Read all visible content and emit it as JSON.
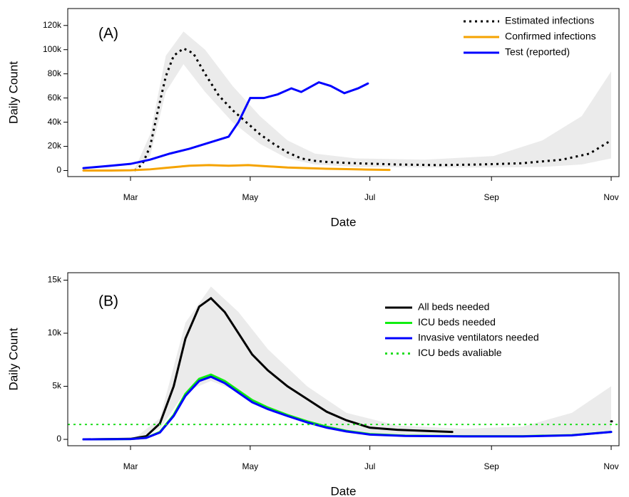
{
  "chart_data": [
    {
      "type": "line",
      "annotation": "(A)",
      "x_label": "Date",
      "y_label": "Daily Count",
      "xlim": [
        28,
        309
      ],
      "ylim": [
        -5000,
        134000
      ],
      "xticks": [
        {
          "value": 60,
          "label": "Mar"
        },
        {
          "value": 121,
          "label": "May"
        },
        {
          "value": 182,
          "label": "Jul"
        },
        {
          "value": 244,
          "label": "Sep"
        },
        {
          "value": 305,
          "label": "Nov"
        }
      ],
      "yticks": [
        0,
        {
          "value": 20000,
          "label": "20k"
        },
        {
          "value": 40000,
          "label": "40k"
        },
        {
          "value": 60000,
          "label": "60k"
        },
        {
          "value": 80000,
          "label": "80k"
        },
        {
          "value": 100000,
          "label": "100k"
        },
        {
          "value": 120000,
          "label": "120k"
        }
      ],
      "legend": "top-right",
      "band": {
        "color": "#ebebeb",
        "x": [
          62,
          70,
          78,
          87,
          98,
          112,
          126,
          140,
          154,
          175,
          210,
          245,
          270,
          290,
          305
        ],
        "upper": [
          1000,
          30000,
          95000,
          115000,
          100000,
          70000,
          45000,
          25000,
          14000,
          10000,
          9000,
          12000,
          25000,
          45000,
          82000
        ],
        "lower": [
          0,
          12000,
          65000,
          88000,
          65000,
          40000,
          22000,
          10000,
          5000,
          3000,
          2500,
          2500,
          3000,
          5000,
          10000
        ]
      },
      "series": [
        {
          "name": "Estimated infections",
          "color": "#000000",
          "dash": "dotted",
          "x": [
            62,
            66,
            70,
            74,
            78,
            82,
            87,
            92,
            98,
            105,
            112,
            119,
            126,
            133,
            140,
            147,
            154,
            161,
            175,
            196,
            217,
            238,
            259,
            280,
            294,
            305
          ],
          "values": [
            0,
            5000,
            20000,
            50000,
            78000,
            95000,
            101000,
            97000,
            80000,
            62000,
            50000,
            40000,
            30000,
            22000,
            15000,
            10000,
            8000,
            7000,
            6000,
            5000,
            4500,
            5000,
            6000,
            9000,
            14000,
            25000
          ]
        },
        {
          "name": "Confirmed infections",
          "color": "#f5a300",
          "dash": "solid",
          "x": [
            36,
            50,
            60,
            70,
            80,
            90,
            100,
            110,
            120,
            130,
            140,
            150,
            160,
            170,
            180,
            192
          ],
          "values": [
            0,
            0,
            200,
            1000,
            2500,
            4000,
            4500,
            4000,
            4500,
            3500,
            2500,
            2000,
            1500,
            1200,
            800,
            500
          ]
        },
        {
          "name": "Test (reported)",
          "color": "#0000ff",
          "dash": "solid",
          "x": [
            36,
            50,
            60,
            70,
            80,
            90,
            100,
            110,
            115,
            121,
            128,
            135,
            142,
            147,
            156,
            162,
            169,
            176,
            181
          ],
          "values": [
            2000,
            4000,
            5500,
            9000,
            14000,
            18000,
            23000,
            28000,
            40000,
            60000,
            60000,
            63000,
            68000,
            65000,
            73000,
            70000,
            64000,
            68000,
            72000
          ]
        }
      ]
    },
    {
      "type": "line",
      "annotation": "(B)",
      "x_label": "Date",
      "y_label": "Daily Count",
      "xlim": [
        28,
        309
      ],
      "ylim": [
        -600,
        15700
      ],
      "xticks": [
        {
          "value": 60,
          "label": "Mar"
        },
        {
          "value": 121,
          "label": "May"
        },
        {
          "value": 182,
          "label": "Jul"
        },
        {
          "value": 244,
          "label": "Sep"
        },
        {
          "value": 305,
          "label": "Nov"
        }
      ],
      "yticks": [
        0,
        {
          "value": 5000,
          "label": "5k"
        },
        {
          "value": 10000,
          "label": "10k"
        },
        {
          "value": 15000,
          "label": "15k"
        }
      ],
      "legend": "top-right",
      "band": {
        "color": "#ebebeb",
        "x": [
          62,
          75,
          88,
          101,
          115,
          130,
          150,
          170,
          196,
          230,
          260,
          285,
          305
        ],
        "upper": [
          100,
          2000,
          11000,
          14400,
          12000,
          8500,
          5000,
          2500,
          1300,
          1000,
          1200,
          2500,
          5000
        ],
        "lower": [
          0,
          1000,
          4500,
          5500,
          4500,
          3000,
          1500,
          600,
          300,
          200,
          200,
          300,
          600
        ]
      },
      "series": [
        {
          "name": "All beds needed",
          "color": "#000000",
          "dash": "solid",
          "x": [
            36,
            60,
            68,
            75,
            82,
            88,
            95,
            101,
            108,
            115,
            122,
            130,
            140,
            150,
            160,
            170,
            182,
            196,
            210,
            224,
            260,
            305
          ],
          "values": [
            0,
            50,
            300,
            1500,
            5000,
            9500,
            12500,
            13300,
            12000,
            10000,
            8000,
            6500,
            5000,
            3800,
            2600,
            1800,
            1100,
            900,
            800,
            700,
            null,
            1700
          ]
        },
        {
          "name": "ICU beds needed",
          "color": "#11ee11",
          "dash": "solid",
          "x": [
            36,
            60,
            68,
            75,
            82,
            88,
            95,
            101,
            108,
            115,
            122,
            130,
            140,
            150,
            160,
            170,
            182,
            200,
            230,
            260,
            285,
            305
          ],
          "values": [
            0,
            30,
            150,
            700,
            2300,
            4300,
            5700,
            6100,
            5500,
            4600,
            3700,
            3000,
            2300,
            1700,
            1200,
            800,
            500,
            350,
            300,
            300,
            400,
            700
          ]
        },
        {
          "name": "Invasive ventilators needed",
          "color": "#0000ff",
          "dash": "solid",
          "x": [
            36,
            60,
            68,
            75,
            82,
            88,
            95,
            101,
            108,
            115,
            122,
            130,
            140,
            150,
            160,
            170,
            182,
            200,
            230,
            260,
            285,
            305
          ],
          "values": [
            0,
            30,
            140,
            650,
            2200,
            4100,
            5500,
            5900,
            5300,
            4400,
            3500,
            2850,
            2200,
            1600,
            1100,
            750,
            450,
            320,
            280,
            280,
            380,
            700
          ]
        },
        {
          "name": "ICU beds avaliable",
          "color": "#22dd22",
          "dash": "dotted",
          "hline": 1400
        }
      ]
    }
  ]
}
